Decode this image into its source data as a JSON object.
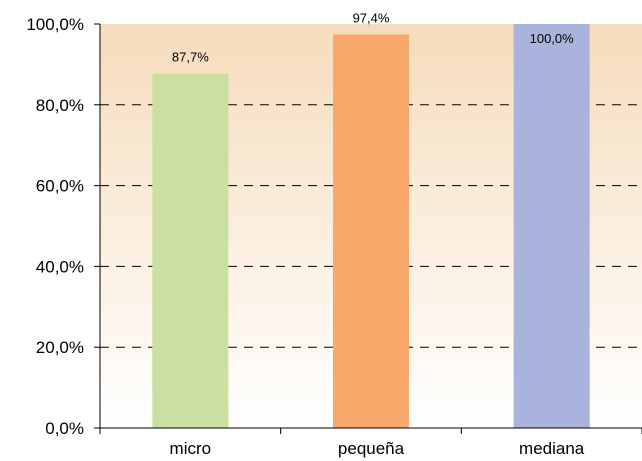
{
  "chart_data": {
    "type": "bar",
    "categories": [
      "micro",
      "pequeña",
      "mediana"
    ],
    "values": [
      87.7,
      97.4,
      100.0
    ],
    "data_labels": [
      "87,7%",
      "97,4%",
      "100,0%"
    ],
    "bar_colors": [
      "#c9e0a0",
      "#f8a86a",
      "#aab3db"
    ],
    "yticks": [
      0,
      20,
      40,
      60,
      80,
      100
    ],
    "ytick_labels": [
      "0,0%",
      "20,0%",
      "40,0%",
      "60,0%",
      "80,0%",
      "100,0%"
    ],
    "ylim": [
      0,
      100
    ],
    "grid": "dashed horizontal",
    "background": "gradient peach to white",
    "title": "",
    "xlabel": "",
    "ylabel": ""
  }
}
